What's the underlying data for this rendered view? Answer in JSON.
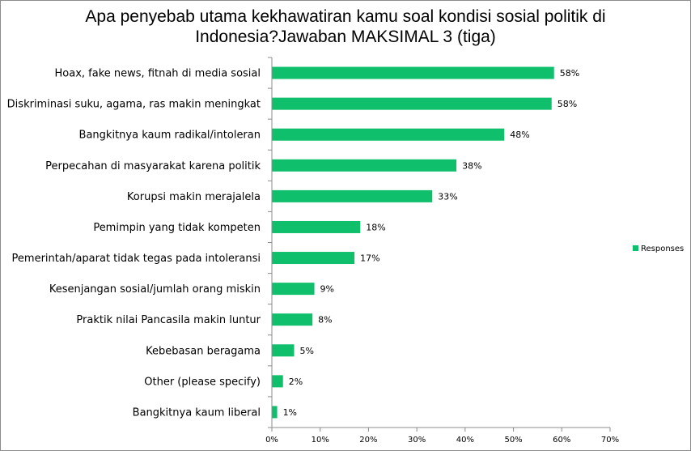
{
  "chart_data": {
    "type": "bar",
    "orientation": "horizontal",
    "title_line1": "Apa penyebab utama kekhawatiran kamu soal kondisi sosial politik di",
    "title_line2": "Indonesia?Jawaban MAKSIMAL 3 (tiga)",
    "categories": [
      "Hoax, fake news, fitnah di media sosial",
      "Diskriminasi suku, agama, ras makin meningkat",
      "Bangkitnya kaum radikal/intoleran",
      "Perpecahan di masyarakat karena politik",
      "Korupsi makin merajalela",
      "Pemimpin yang tidak kompeten",
      "Pemerintah/aparat tidak tegas pada intoleransi",
      "Kesenjangan sosial/jumlah orang miskin",
      "Praktik nilai Pancasila makin luntur",
      "Kebebasan beragama",
      "Other (please specify)",
      "Bangkitnya kaum liberal"
    ],
    "series": [
      {
        "name": "Responses",
        "values": [
          58.4,
          57.9,
          48.1,
          38.2,
          33.2,
          18.3,
          17.1,
          8.8,
          8.4,
          4.6,
          2.3,
          1.1
        ],
        "labels": [
          "58%",
          "58%",
          "48%",
          "38%",
          "33%",
          "18%",
          "17%",
          "9%",
          "8%",
          "5%",
          "2%",
          "1%"
        ],
        "color": "#0fbf6b"
      }
    ],
    "xlim": [
      0,
      70
    ],
    "xticks": [
      "0%",
      "10%",
      "20%",
      "30%",
      "40%",
      "50%",
      "60%",
      "70%"
    ],
    "legend_position": "right",
    "grid": false
  }
}
